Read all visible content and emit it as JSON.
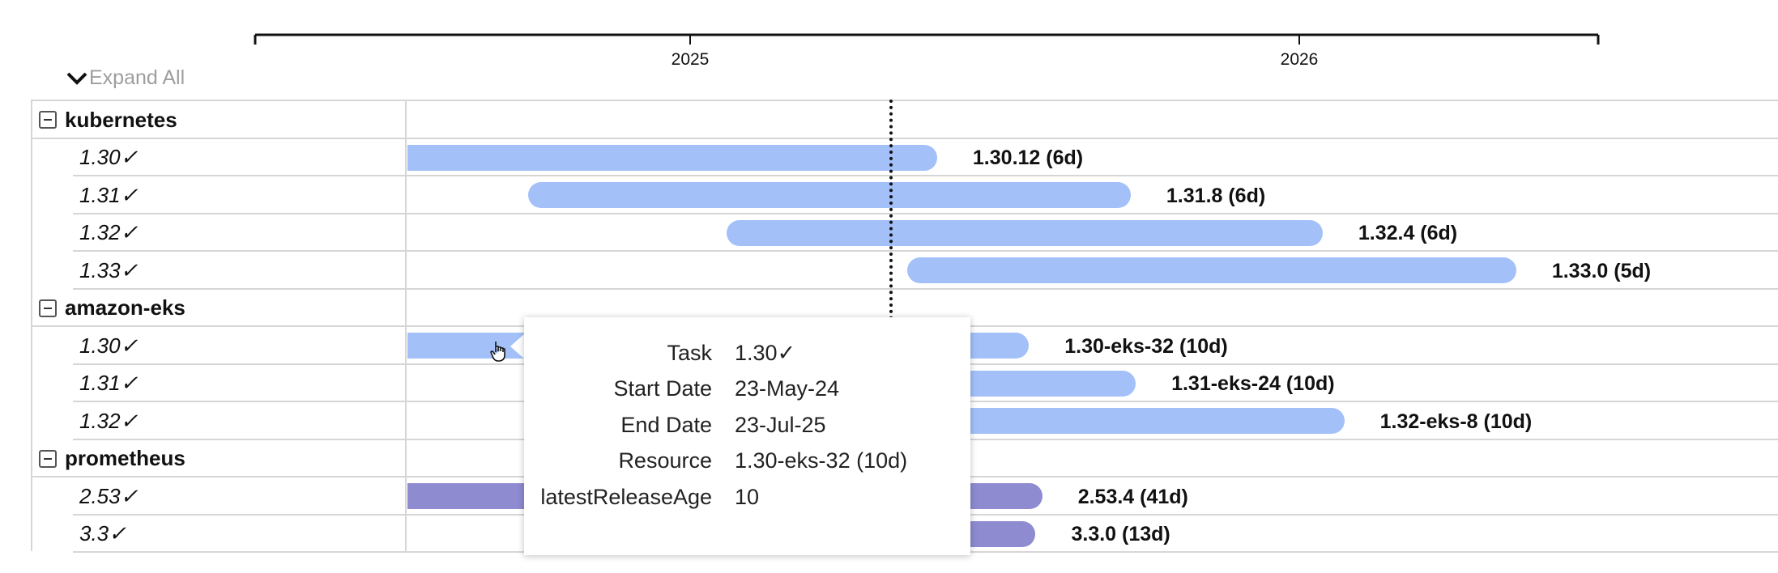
{
  "controls": {
    "expand_all_label": "Expand All"
  },
  "colors": {
    "kubernetes_bar": "#a3c0f9",
    "amazon_eks_bar": "#a3c0f9",
    "prometheus_bar": "#8e8bd1",
    "today_line": "#111111"
  },
  "icons": {
    "expand_all": "chevron-down-icon",
    "group_toggle": "collapse-minus-icon",
    "cursor": "hand-pointer-icon"
  },
  "chart_data": {
    "type": "gantt",
    "x_axis": {
      "ticks": [
        "2025",
        "2026"
      ]
    },
    "today_marker": "2025-05-15",
    "groups": [
      {
        "name": "kubernetes",
        "tasks": [
          {
            "task": "1.30✓",
            "start": "2024-05-23",
            "end": "2025-05-29",
            "label": "1.30.12 (6d)"
          },
          {
            "task": "1.31✓",
            "start": "2024-09-26",
            "end": "2025-09-22",
            "label": "1.31.8 (6d)"
          },
          {
            "task": "1.32✓",
            "start": "2025-01-23",
            "end": "2026-01-15",
            "label": "1.32.4 (6d)"
          },
          {
            "task": "1.33✓",
            "start": "2025-05-11",
            "end": "2026-05-11",
            "label": "1.33.0 (5d)"
          }
        ]
      },
      {
        "name": "amazon-eks",
        "tasks": [
          {
            "task": "1.30✓",
            "start": "2024-05-23",
            "end": "2025-07-23",
            "label": "1.30-eks-32 (10d)"
          },
          {
            "task": "1.31✓",
            "start": "2024-09-26",
            "end": "2025-09-25",
            "label": "1.31-eks-24 (10d)"
          },
          {
            "task": "1.32✓",
            "start": "2025-01-23",
            "end": "2026-01-28",
            "label": "1.32-eks-8 (10d)"
          }
        ]
      },
      {
        "name": "prometheus",
        "tasks": [
          {
            "task": "2.53✓",
            "start": "2024-05-23",
            "end": "2025-07-31",
            "label": "2.53.4 (41d)"
          },
          {
            "task": "3.3✓",
            "start": "2025-01-15",
            "end": "2025-07-27",
            "label": "3.3.0 (13d)"
          }
        ]
      }
    ]
  },
  "tooltip": {
    "rows": [
      {
        "key": "Task",
        "value": "1.30✓"
      },
      {
        "key": "Start Date",
        "value": "23-May-24"
      },
      {
        "key": "End Date",
        "value": "23-Jul-25"
      },
      {
        "key": "Resource",
        "value": "1.30-eks-32 (10d)"
      },
      {
        "key": "latestReleaseAge",
        "value": "10"
      }
    ]
  }
}
